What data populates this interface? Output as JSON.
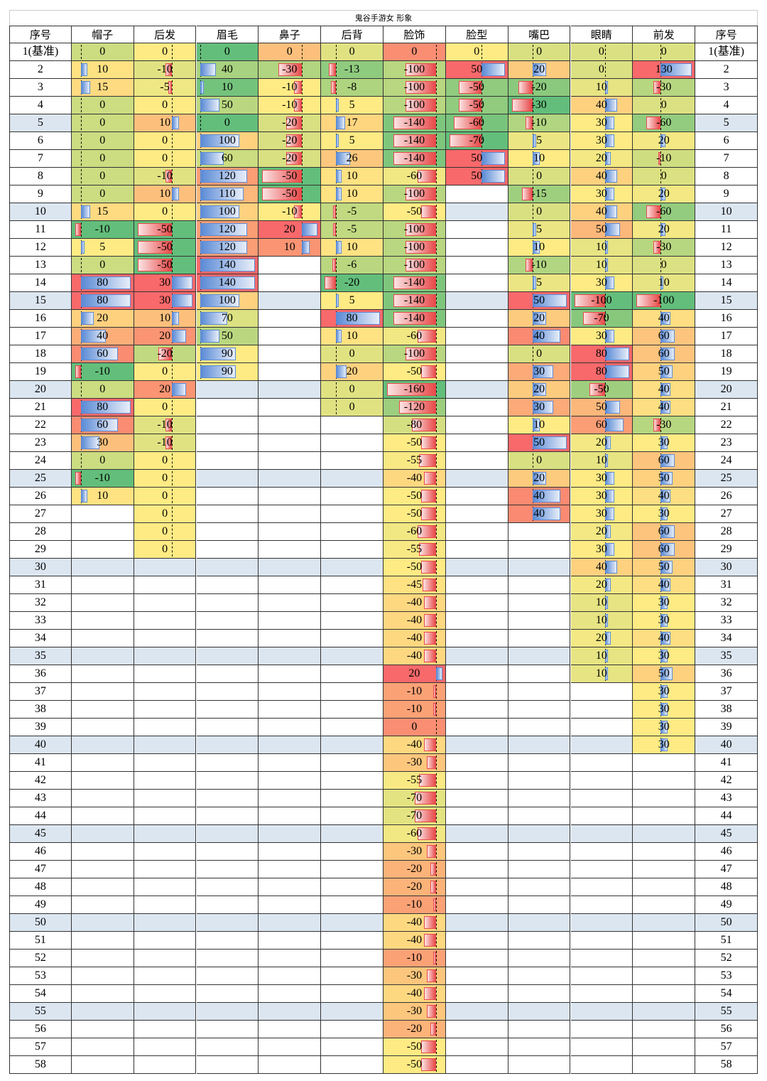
{
  "title": "鬼谷手游女 形象",
  "table": {
    "headers": [
      "序号",
      "帽子",
      "后发",
      "眉毛",
      "鼻子",
      "后背",
      "脸饰",
      "脸型",
      "嘴巴",
      "眼睛",
      "前发",
      "序号"
    ],
    "rows": [
      [
        "1(基准)",
        0,
        0,
        0,
        0,
        0,
        0,
        0,
        0,
        0,
        0,
        "1(基准)"
      ],
      [
        2,
        10,
        -10,
        40,
        -30,
        -13,
        -100,
        50,
        20,
        0,
        130,
        2
      ],
      [
        3,
        15,
        -5,
        10,
        -10,
        -8,
        -100,
        -50,
        -20,
        10,
        -30,
        3
      ],
      [
        4,
        0,
        0,
        50,
        -10,
        5,
        -100,
        -50,
        -30,
        40,
        0,
        4
      ],
      [
        5,
        0,
        10,
        0,
        -20,
        17,
        -140,
        -60,
        -10,
        30,
        -60,
        5
      ],
      [
        6,
        0,
        0,
        100,
        -20,
        5,
        -140,
        -70,
        5,
        30,
        20,
        6
      ],
      [
        7,
        0,
        0,
        60,
        -20,
        26,
        -140,
        50,
        10,
        20,
        -10,
        7
      ],
      [
        8,
        0,
        -10,
        120,
        -50,
        10,
        -60,
        50,
        0,
        40,
        0,
        8
      ],
      [
        9,
        0,
        10,
        110,
        -50,
        10,
        -100,
        null,
        -15,
        30,
        20,
        9
      ],
      [
        10,
        15,
        0,
        100,
        -10,
        -5,
        -50,
        null,
        0,
        40,
        -60,
        10
      ],
      [
        11,
        -10,
        -50,
        120,
        20,
        -5,
        -100,
        null,
        5,
        50,
        20,
        11
      ],
      [
        12,
        5,
        -50,
        120,
        10,
        10,
        -100,
        null,
        10,
        10,
        -30,
        12
      ],
      [
        13,
        0,
        -50,
        140,
        null,
        -6,
        -100,
        null,
        -10,
        10,
        0,
        13
      ],
      [
        14,
        80,
        30,
        140,
        null,
        -20,
        -140,
        null,
        5,
        30,
        10,
        14
      ],
      [
        15,
        80,
        30,
        100,
        null,
        5,
        -140,
        null,
        50,
        -100,
        -100,
        15
      ],
      [
        16,
        20,
        10,
        70,
        null,
        80,
        -140,
        null,
        20,
        -70,
        40,
        16
      ],
      [
        17,
        40,
        20,
        50,
        null,
        10,
        -60,
        null,
        40,
        30,
        60,
        17
      ],
      [
        18,
        60,
        -20,
        90,
        null,
        0,
        -100,
        null,
        0,
        80,
        60,
        18
      ],
      [
        19,
        -10,
        0,
        90,
        null,
        20,
        -50,
        null,
        30,
        80,
        50,
        19
      ],
      [
        20,
        0,
        20,
        null,
        null,
        0,
        -160,
        null,
        20,
        -50,
        40,
        20
      ],
      [
        21,
        80,
        0,
        null,
        null,
        0,
        -120,
        null,
        30,
        50,
        40,
        21
      ],
      [
        22,
        60,
        -10,
        null,
        null,
        null,
        -80,
        null,
        10,
        60,
        -30,
        22
      ],
      [
        23,
        30,
        -10,
        null,
        null,
        null,
        -50,
        null,
        50,
        20,
        30,
        23
      ],
      [
        24,
        0,
        0,
        null,
        null,
        null,
        -55,
        null,
        0,
        10,
        60,
        24
      ],
      [
        25,
        -10,
        0,
        null,
        null,
        null,
        -40,
        null,
        20,
        30,
        50,
        25
      ],
      [
        26,
        10,
        0,
        null,
        null,
        null,
        -50,
        null,
        40,
        30,
        40,
        26
      ],
      [
        27,
        null,
        0,
        null,
        null,
        null,
        -50,
        null,
        40,
        30,
        30,
        27
      ],
      [
        28,
        null,
        0,
        null,
        null,
        null,
        -60,
        null,
        null,
        20,
        60,
        28
      ],
      [
        29,
        null,
        0,
        null,
        null,
        null,
        -55,
        null,
        null,
        30,
        60,
        29
      ],
      [
        30,
        null,
        null,
        null,
        null,
        null,
        -50,
        null,
        null,
        40,
        50,
        30
      ],
      [
        31,
        null,
        null,
        null,
        null,
        null,
        -45,
        null,
        null,
        20,
        40,
        31
      ],
      [
        32,
        null,
        null,
        null,
        null,
        null,
        -40,
        null,
        null,
        10,
        30,
        32
      ],
      [
        33,
        null,
        null,
        null,
        null,
        null,
        -40,
        null,
        null,
        10,
        30,
        33
      ],
      [
        34,
        null,
        null,
        null,
        null,
        null,
        -40,
        null,
        null,
        20,
        40,
        34
      ],
      [
        35,
        null,
        null,
        null,
        null,
        null,
        -40,
        null,
        null,
        10,
        30,
        35
      ],
      [
        36,
        null,
        null,
        null,
        null,
        null,
        20,
        null,
        null,
        10,
        50,
        36
      ],
      [
        37,
        null,
        null,
        null,
        null,
        null,
        -10,
        null,
        null,
        null,
        30,
        37
      ],
      [
        38,
        null,
        null,
        null,
        null,
        null,
        -10,
        null,
        null,
        null,
        30,
        38
      ],
      [
        39,
        null,
        null,
        null,
        null,
        null,
        0,
        null,
        null,
        null,
        30,
        39
      ],
      [
        40,
        null,
        null,
        null,
        null,
        null,
        -40,
        null,
        null,
        null,
        30,
        40
      ],
      [
        41,
        null,
        null,
        null,
        null,
        null,
        -30,
        null,
        null,
        null,
        null,
        41
      ],
      [
        42,
        null,
        null,
        null,
        null,
        null,
        -55,
        null,
        null,
        null,
        null,
        42
      ],
      [
        43,
        null,
        null,
        null,
        null,
        null,
        -70,
        null,
        null,
        null,
        null,
        43
      ],
      [
        44,
        null,
        null,
        null,
        null,
        null,
        -70,
        null,
        null,
        null,
        null,
        44
      ],
      [
        45,
        null,
        null,
        null,
        null,
        null,
        -60,
        null,
        null,
        null,
        null,
        45
      ],
      [
        46,
        null,
        null,
        null,
        null,
        null,
        -30,
        null,
        null,
        null,
        null,
        46
      ],
      [
        47,
        null,
        null,
        null,
        null,
        null,
        -20,
        null,
        null,
        null,
        null,
        47
      ],
      [
        48,
        null,
        null,
        null,
        null,
        null,
        -20,
        null,
        null,
        null,
        null,
        48
      ],
      [
        49,
        null,
        null,
        null,
        null,
        null,
        -10,
        null,
        null,
        null,
        null,
        49
      ],
      [
        50,
        null,
        null,
        null,
        null,
        null,
        -40,
        null,
        null,
        null,
        null,
        50
      ],
      [
        51,
        null,
        null,
        null,
        null,
        null,
        -40,
        null,
        null,
        null,
        null,
        51
      ],
      [
        52,
        null,
        null,
        null,
        null,
        null,
        -10,
        null,
        null,
        null,
        null,
        52
      ],
      [
        53,
        null,
        null,
        null,
        null,
        null,
        -30,
        null,
        null,
        null,
        null,
        53
      ],
      [
        54,
        null,
        null,
        null,
        null,
        null,
        -40,
        null,
        null,
        null,
        null,
        54
      ],
      [
        55,
        null,
        null,
        null,
        null,
        null,
        -30,
        null,
        null,
        null,
        null,
        55
      ],
      [
        56,
        null,
        null,
        null,
        null,
        null,
        -20,
        null,
        null,
        null,
        null,
        56
      ],
      [
        57,
        null,
        null,
        null,
        null,
        null,
        -50,
        null,
        null,
        null,
        null,
        57
      ],
      [
        58,
        null,
        null,
        null,
        null,
        null,
        -50,
        null,
        null,
        null,
        null,
        58
      ]
    ]
  }
}
